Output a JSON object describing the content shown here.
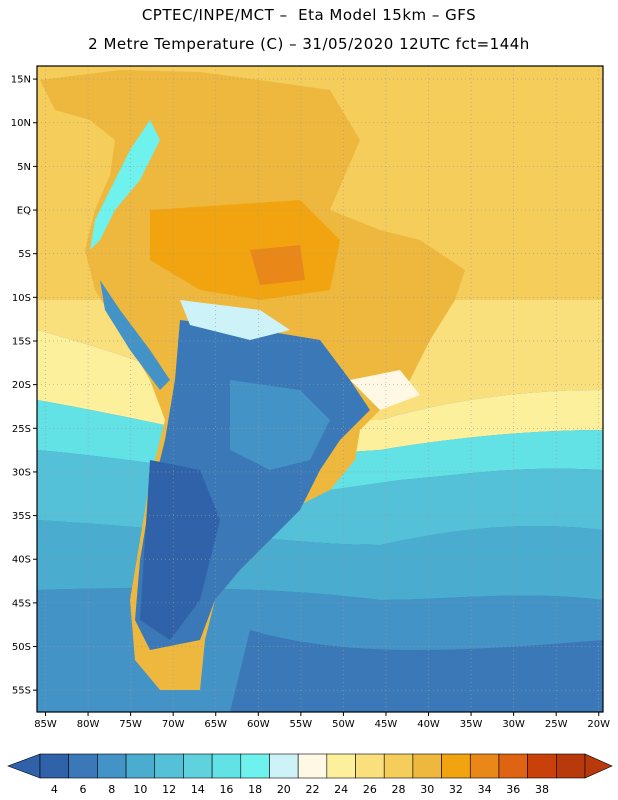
{
  "header": {
    "line1": "CPTEC/INPE/MCT –  Eta Model 15km – GFS",
    "line2": "2 Metre Temperature (C) – 31/05/2020 12UTC fct=144h"
  },
  "map": {
    "region": "South America",
    "lat_labels": [
      "15N",
      "10N",
      "5N",
      "EQ",
      "5S",
      "10S",
      "15S",
      "20S",
      "25S",
      "30S",
      "35S",
      "40S",
      "45S",
      "50S",
      "55S"
    ],
    "lon_labels": [
      "85W",
      "80W",
      "75W",
      "70W",
      "65W",
      "60W",
      "55W",
      "50W",
      "45W",
      "40W",
      "35W",
      "30W",
      "25W",
      "20W"
    ],
    "lat_values": [
      15,
      10,
      5,
      0,
      -5,
      -10,
      -15,
      -20,
      -25,
      -30,
      -35,
      -40,
      -45,
      -50,
      -55
    ],
    "lon_values": [
      -85,
      -80,
      -75,
      -70,
      -65,
      -60,
      -55,
      -50,
      -45,
      -40,
      -35,
      -30,
      -25,
      -20
    ],
    "lat_range": [
      -57.5,
      16.5
    ],
    "lon_range": [
      -86,
      -19.5
    ]
  },
  "colorbar": {
    "labels": [
      "4",
      "6",
      "8",
      "10",
      "12",
      "14",
      "16",
      "18",
      "20",
      "22",
      "24",
      "26",
      "28",
      "30",
      "32",
      "34",
      "36",
      "38"
    ],
    "values": [
      4,
      6,
      8,
      10,
      12,
      14,
      16,
      18,
      20,
      22,
      24,
      26,
      28,
      30,
      32,
      34,
      36,
      38
    ],
    "colors": [
      "#2f62a8",
      "#3a78b8",
      "#4393c6",
      "#4aaccf",
      "#55c1d8",
      "#5fd2de",
      "#63e2e6",
      "#6ff2ee",
      "#cdf3f8",
      "#fff8e4",
      "#fdf09c",
      "#fae07c",
      "#f4cd5a",
      "#eeb83e",
      "#f1a40f",
      "#e98718",
      "#de6414",
      "#c8410a",
      "#b83a0c"
    ],
    "left_arrow_color": "#2f62a8",
    "right_arrow_color": "#b83a0c"
  }
}
